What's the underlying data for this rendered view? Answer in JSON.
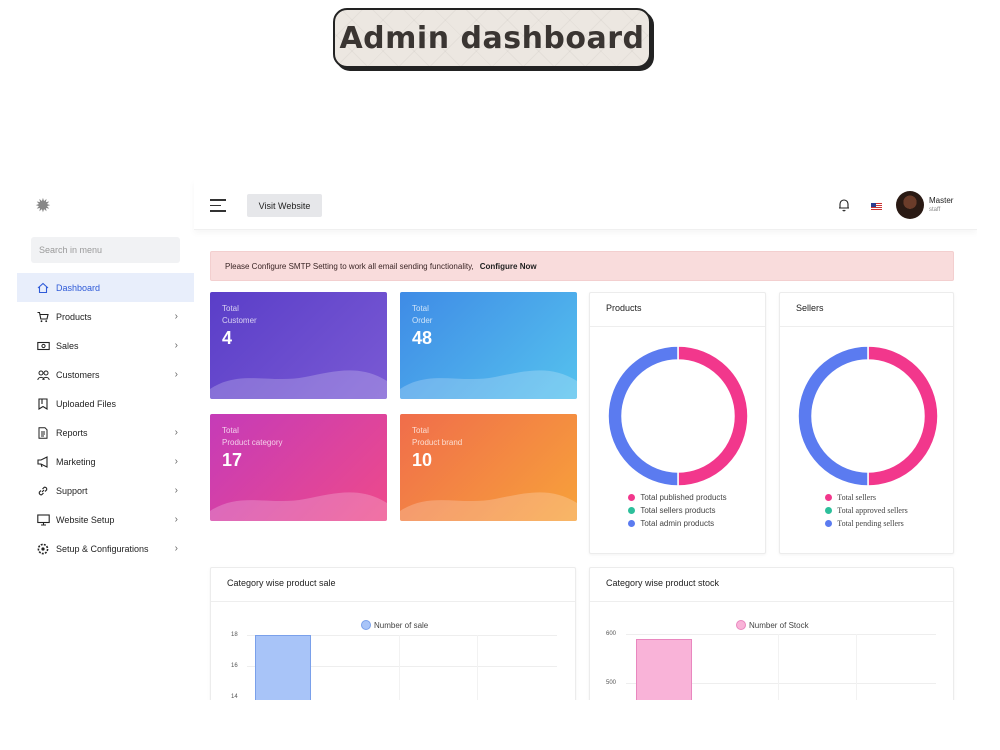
{
  "title": "Admin dashboard",
  "sidebar": {
    "logo_icon": "gear-logo-icon",
    "search_placeholder": "Search in menu",
    "items": [
      {
        "label": "Dashboard",
        "icon": "home-icon",
        "active": true,
        "chevron": false
      },
      {
        "label": "Products",
        "icon": "cart-icon",
        "active": false,
        "chevron": true
      },
      {
        "label": "Sales",
        "icon": "money-icon",
        "active": false,
        "chevron": true
      },
      {
        "label": "Customers",
        "icon": "users-icon",
        "active": false,
        "chevron": true
      },
      {
        "label": "Uploaded Files",
        "icon": "folder-icon",
        "active": false,
        "chevron": false
      },
      {
        "label": "Reports",
        "icon": "document-icon",
        "active": false,
        "chevron": true
      },
      {
        "label": "Marketing",
        "icon": "megaphone-icon",
        "active": false,
        "chevron": true
      },
      {
        "label": "Support",
        "icon": "link-icon",
        "active": false,
        "chevron": true
      },
      {
        "label": "Website Setup",
        "icon": "monitor-icon",
        "active": false,
        "chevron": true
      },
      {
        "label": "Setup & Configurations",
        "icon": "settings-icon",
        "active": false,
        "chevron": true
      }
    ]
  },
  "topbar": {
    "visit_label": "Visit Website",
    "user_name": "Master",
    "user_role": "staff"
  },
  "alert": {
    "message": "Please Configure SMTP Setting to work all email sending functionality,",
    "link": "Configure Now"
  },
  "stats": [
    {
      "line1": "Total",
      "line2": "Customer",
      "value": "4"
    },
    {
      "line1": "Total",
      "line2": "Order",
      "value": "48"
    },
    {
      "line1": "Total",
      "line2": "Product category",
      "value": "17"
    },
    {
      "line1": "Total",
      "line2": "Product brand",
      "value": "10"
    }
  ],
  "colors": {
    "pink": "#f2378c",
    "blue": "#5b7bf0",
    "teal": "#2dbf9b",
    "sale_bar": "#a8c4f8",
    "stock_bar": "#f9b3d8"
  },
  "chart_data": [
    {
      "type": "pie",
      "title": "Products",
      "labels": [
        "Total published products",
        "Total sellers products",
        "Total admin products"
      ],
      "values": [
        50,
        0,
        50
      ],
      "colors": [
        "#f2378c",
        "#2dbf9b",
        "#5b7bf0"
      ]
    },
    {
      "type": "pie",
      "title": "Sellers",
      "labels": [
        "Total sellers",
        "Total approved sellers",
        "Total pending sellers"
      ],
      "values": [
        50,
        0,
        50
      ],
      "colors": [
        "#f2378c",
        "#2dbf9b",
        "#5b7bf0"
      ]
    },
    {
      "type": "bar",
      "title": "Category wise product sale",
      "legend": "Number of sale",
      "categories": [
        ""
      ],
      "values": [
        18
      ],
      "yticks": [
        18,
        16,
        14
      ]
    },
    {
      "type": "bar",
      "title": "Category wise product stock",
      "legend": "Number of Stock",
      "categories": [
        ""
      ],
      "values": [
        590
      ],
      "yticks": [
        600,
        500
      ]
    }
  ]
}
